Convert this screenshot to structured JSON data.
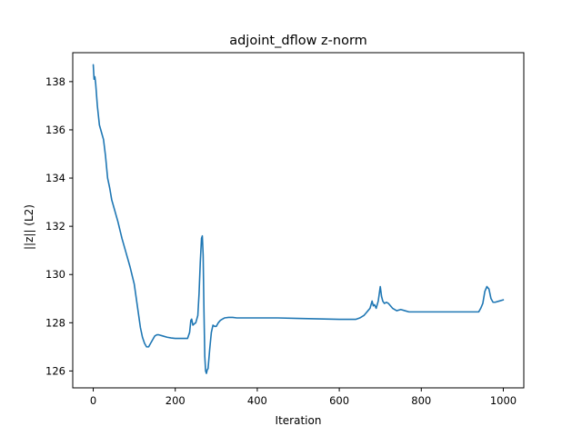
{
  "chart_data": {
    "type": "line",
    "title": "adjoint_dflow z-norm",
    "xlabel": "Iteration",
    "ylabel": "||z|| (L2)",
    "xlim": [
      -50,
      1050
    ],
    "ylim": [
      125.3,
      139.2
    ],
    "xticks": [
      0,
      200,
      400,
      600,
      800,
      1000
    ],
    "yticks": [
      126,
      128,
      130,
      132,
      134,
      136,
      138
    ],
    "grid": false,
    "legend": "none",
    "colors": {
      "line": "#1f77b4",
      "axes": "#000000",
      "background": "#ffffff"
    },
    "series": [
      {
        "x": [
          0,
          2,
          4,
          6,
          10,
          15,
          20,
          25,
          30,
          35,
          40,
          45,
          50,
          60,
          70,
          80,
          90,
          100,
          105,
          110,
          115,
          120,
          125,
          130,
          135,
          140,
          145,
          150,
          155,
          160,
          170,
          180,
          190,
          200,
          210,
          220,
          230,
          235,
          238,
          240,
          243,
          246,
          250,
          255,
          258,
          261,
          264,
          266,
          268,
          270,
          272,
          274,
          276,
          278,
          280,
          284,
          288,
          292,
          296,
          300,
          305,
          310,
          315,
          320,
          330,
          340,
          350,
          360,
          380,
          400,
          450,
          500,
          550,
          600,
          640,
          650,
          660,
          665,
          670,
          675,
          680,
          683,
          686,
          690,
          695,
          700,
          703,
          706,
          710,
          715,
          720,
          725,
          730,
          740,
          750,
          760,
          770,
          780,
          790,
          800,
          850,
          900,
          940,
          945,
          950,
          955,
          960,
          965,
          970,
          975,
          980,
          990,
          1000
        ],
        "y": [
          138.7,
          138.1,
          138.2,
          137.9,
          137.0,
          136.2,
          135.9,
          135.6,
          134.9,
          134.0,
          133.6,
          133.1,
          132.8,
          132.2,
          131.5,
          130.9,
          130.3,
          129.6,
          129.0,
          128.4,
          127.8,
          127.4,
          127.15,
          127.0,
          127.0,
          127.15,
          127.3,
          127.45,
          127.5,
          127.5,
          127.45,
          127.4,
          127.37,
          127.35,
          127.35,
          127.35,
          127.35,
          127.6,
          128.1,
          128.15,
          127.9,
          127.95,
          128.0,
          128.3,
          129.2,
          130.5,
          131.5,
          131.6,
          130.8,
          128.5,
          126.6,
          126.0,
          125.9,
          126.05,
          126.1,
          126.9,
          127.6,
          127.9,
          127.85,
          127.85,
          128.0,
          128.1,
          128.15,
          128.2,
          128.22,
          128.22,
          128.2,
          128.2,
          128.2,
          128.2,
          128.2,
          128.18,
          128.16,
          128.14,
          128.14,
          128.2,
          128.3,
          128.4,
          128.5,
          128.6,
          128.9,
          128.7,
          128.75,
          128.6,
          128.9,
          129.5,
          129.1,
          128.9,
          128.8,
          128.85,
          128.8,
          128.7,
          128.6,
          128.5,
          128.55,
          128.5,
          128.45,
          128.45,
          128.45,
          128.45,
          128.45,
          128.45,
          128.45,
          128.6,
          128.8,
          129.3,
          129.5,
          129.4,
          129.0,
          128.85,
          128.85,
          128.9,
          128.95
        ]
      }
    ]
  }
}
